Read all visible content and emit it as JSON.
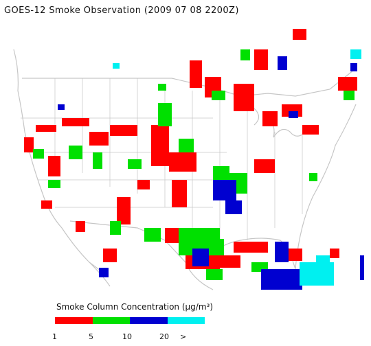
{
  "title": "GOES-12 Smoke Observation (2009 07 08  2200Z)",
  "legend": {
    "title": "Smoke Column Concentration (µg/m³)",
    "colors": [
      "#ff0000",
      "#00e000",
      "#0000d0",
      "#00f0f0"
    ],
    "ticks": [
      "1",
      "5",
      "10",
      "20",
      ">"
    ]
  },
  "map": {
    "region": "Continental United States with southern Canada and northern Mexico",
    "smoke_colors": {
      "1-5": "#ff0000",
      "5-10": "#00e000",
      "10-20": "#0000d0",
      ">20": "#00f0f0"
    },
    "boundary_color": "#c8c8c8"
  }
}
